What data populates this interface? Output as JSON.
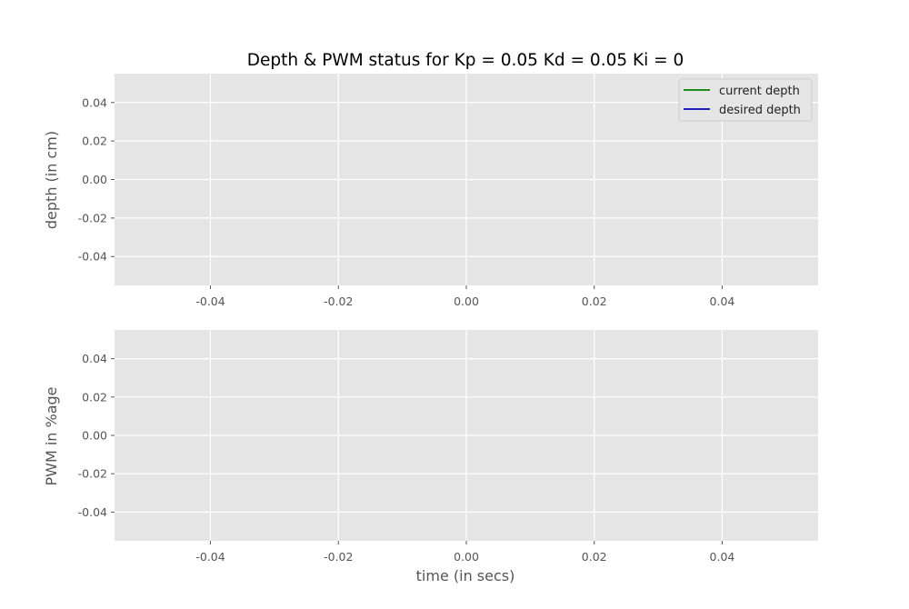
{
  "chart_data": [
    {
      "type": "line",
      "title": "Depth & PWM status for Kp = 0.05 Kd = 0.05 Ki = 0",
      "xlabel": "",
      "ylabel": "depth (in cm)",
      "xlim": [
        -0.055,
        0.055
      ],
      "ylim": [
        -0.055,
        0.055
      ],
      "xticks": [
        "-0.04",
        "-0.02",
        "0.00",
        "0.02",
        "0.04"
      ],
      "yticks": [
        "0.04",
        "0.02",
        "0.00",
        "-0.02",
        "-0.04"
      ],
      "grid": true,
      "legend_position": "top-right",
      "series": [
        {
          "name": "current depth",
          "color": "#008000",
          "x": [],
          "y": []
        },
        {
          "name": "desired depth",
          "color": "#0000bf",
          "x": [],
          "y": []
        }
      ]
    },
    {
      "type": "line",
      "title": "",
      "xlabel": "time (in secs)",
      "ylabel": "PWM in %age",
      "xlim": [
        -0.055,
        0.055
      ],
      "ylim": [
        -0.055,
        0.055
      ],
      "xticks": [
        "-0.04",
        "-0.02",
        "0.00",
        "0.02",
        "0.04"
      ],
      "yticks": [
        "0.04",
        "0.02",
        "0.00",
        "-0.02",
        "-0.04"
      ],
      "grid": true,
      "series": []
    }
  ],
  "colors": {
    "axes_bg": "#e5e5e5",
    "grid": "#ffffff",
    "tick": "#555555"
  }
}
